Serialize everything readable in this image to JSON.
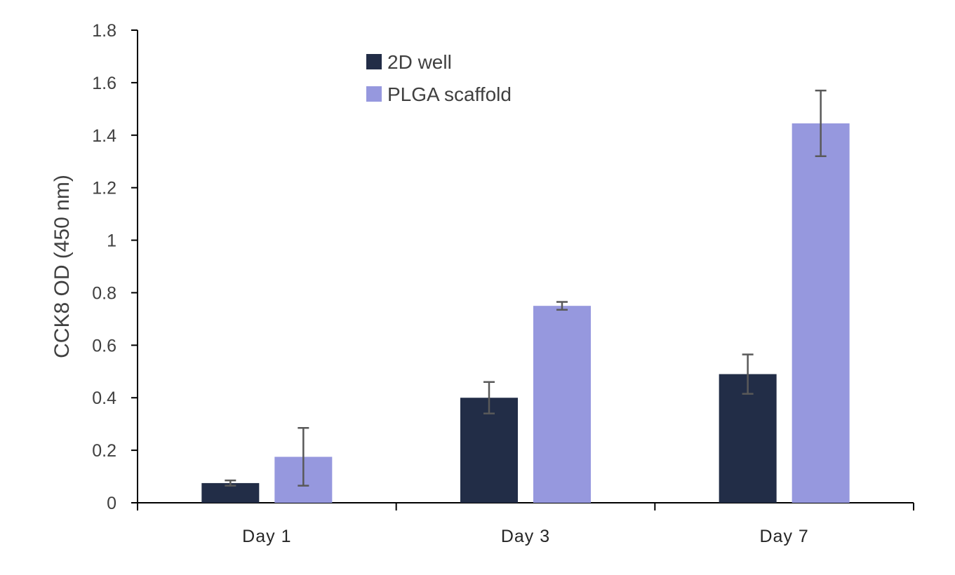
{
  "chart_data": {
    "type": "bar",
    "title": "",
    "xlabel": "",
    "ylabel": "CCK8 OD (450 nm)",
    "ylim": [
      0,
      1.8
    ],
    "yticks": [
      0,
      0.2,
      0.4,
      0.6,
      0.8,
      1,
      1.2,
      1.4,
      1.6,
      1.8
    ],
    "ytick_labels": [
      "0",
      "0.2",
      "0.4",
      "0.6",
      "0.8",
      "1",
      "1.2",
      "1.4",
      "1.6",
      "1.8"
    ],
    "categories": [
      "Day 1",
      "Day 3",
      "Day 7"
    ],
    "series": [
      {
        "name": "2D well",
        "color": "#222d47",
        "values": [
          0.075,
          0.4,
          0.49
        ],
        "error": [
          0.01,
          0.06,
          0.075
        ]
      },
      {
        "name": "PLGA scaffold",
        "color": "#9698de",
        "values": [
          0.175,
          0.75,
          1.445
        ],
        "error": [
          0.11,
          0.015,
          0.125
        ]
      }
    ],
    "grid": false,
    "legend_position": "top"
  }
}
